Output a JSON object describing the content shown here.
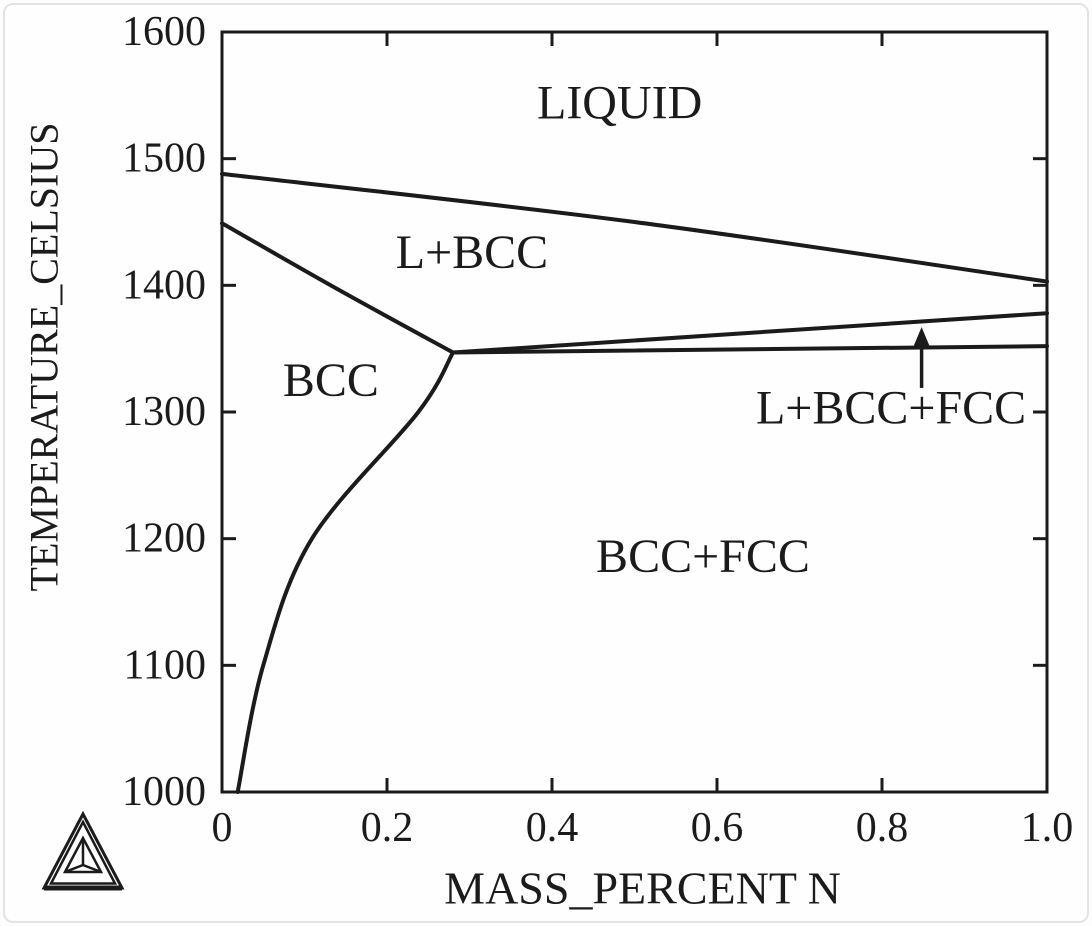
{
  "page": {
    "background": "#fdfdfd",
    "frame_border_color": "#e2e3e4",
    "ink_color": "#1b1b1b"
  },
  "logo": {
    "icon": "thermo-calc-triangle-logo"
  },
  "chart_data": {
    "type": "line",
    "title": "",
    "xlabel": "MASS_PERCENT N",
    "ylabel": "TEMPERATURE_CELSIUS",
    "xlim": [
      0,
      1.0
    ],
    "ylim": [
      1000,
      1600
    ],
    "grid": false,
    "legend": "none",
    "line_color": "#1b1b1b",
    "xticks": {
      "values": [
        0,
        0.2,
        0.4,
        0.6,
        0.8,
        1.0
      ],
      "labels": [
        "0",
        "0.2",
        "0.4",
        "0.6",
        "0.8",
        "1.0"
      ]
    },
    "yticks": {
      "values": [
        1000,
        1100,
        1200,
        1300,
        1400,
        1500,
        1600
      ],
      "labels": [
        "1000",
        "1100",
        "1200",
        "1300",
        "1400",
        "1500",
        "1600"
      ]
    },
    "series": [
      {
        "name": "liquidus-boundary-liquid-over-l-plus-bcc",
        "points": [
          [
            0,
            1488
          ],
          [
            0.5,
            1450
          ],
          [
            1.0,
            1403
          ]
        ]
      },
      {
        "name": "solidus-boundary-bcc-over-l-plus-bcc",
        "points": [
          [
            0,
            1449
          ],
          [
            0.14,
            1397
          ],
          [
            0.28,
            1347
          ]
        ]
      },
      {
        "name": "solvus-boundary-bcc-over-bcc-plus-fcc",
        "points": [
          [
            0.28,
            1347
          ],
          [
            0.238,
            1300
          ],
          [
            0.109,
            1200
          ],
          [
            0.05,
            1100
          ],
          [
            0.019,
            1000
          ]
        ]
      },
      {
        "name": "three-phase-upper-boundary-l-plus-bcc-over-l-bcc-fcc",
        "points": [
          [
            0.28,
            1347
          ],
          [
            1.0,
            1378
          ]
        ]
      },
      {
        "name": "three-phase-lower-boundary-l-bcc-fcc-over-bcc-plus-fcc",
        "points": [
          [
            0.28,
            1347
          ],
          [
            1.0,
            1352
          ]
        ]
      }
    ],
    "region_labels": [
      {
        "text": "LIQUID",
        "x": 0.482,
        "y": 1544
      },
      {
        "text": "L+BCC",
        "x": 0.303,
        "y": 1426
      },
      {
        "text": "BCC",
        "x": 0.132,
        "y": 1325
      },
      {
        "text": "BCC+FCC",
        "x": 0.583,
        "y": 1186
      },
      {
        "text": "L+BCC+FCC",
        "x": 0.811,
        "y": 1303
      }
    ],
    "annotation_arrow": {
      "points_to_region": "L+BCC+FCC",
      "x": 0.848,
      "y_tail": 1319,
      "y_tip": 1367
    }
  }
}
